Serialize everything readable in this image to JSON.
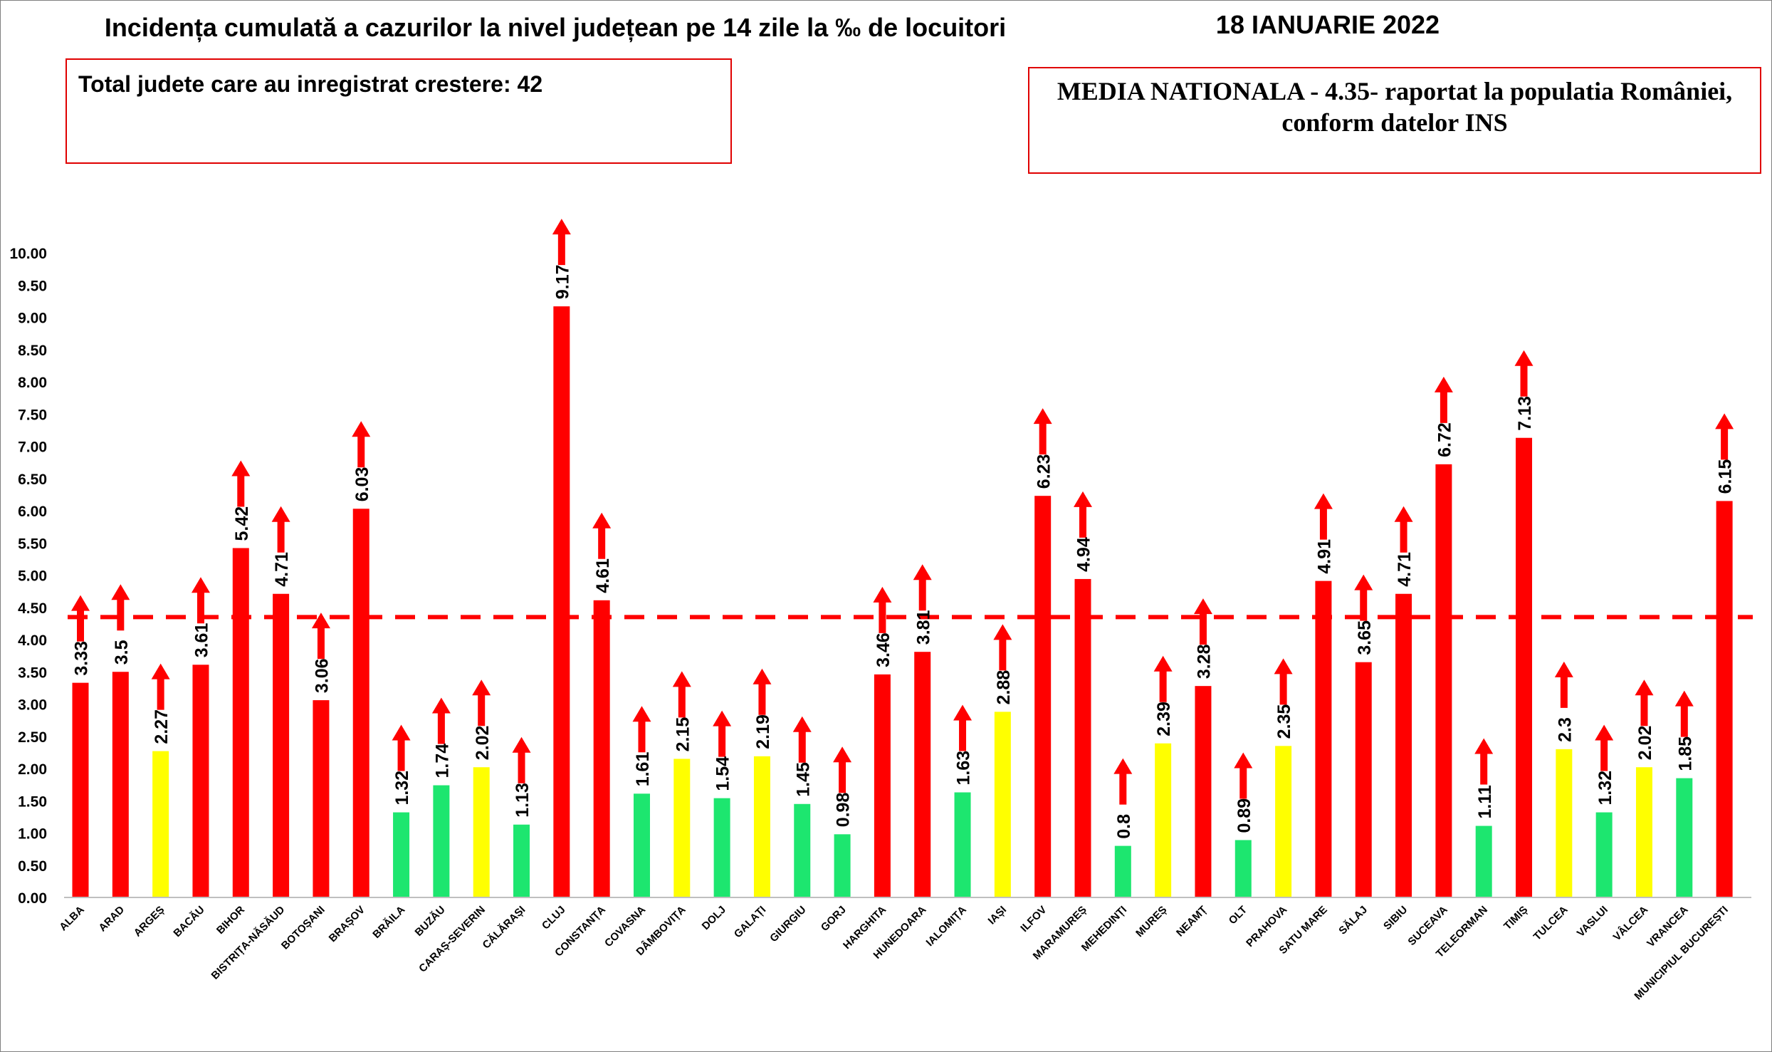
{
  "title": "Incidența cumulată a cazurilor la nivel județean pe 14 zile la ‰ de locuitori",
  "date": "18 IANUARIE 2022",
  "info_box": {
    "text": "Total judete care au inregistrat crestere: 42"
  },
  "media_box": {
    "line1": "MEDIA NATIONALA - 4.35-  raportat la populatia României,",
    "line2": "conform datelor INS"
  },
  "colors": {
    "red": "#ff0000",
    "yellow": "#ffff00",
    "green": "#1de66f",
    "arrow": "#ff0000",
    "average_line": "#ff0000"
  },
  "chart_data": {
    "type": "bar",
    "title": "Incidența cumulată a cazurilor la nivel județean pe 14 zile la ‰ de locuitori",
    "ylim": [
      0,
      10
    ],
    "ytick_step": 0.5,
    "grid": false,
    "reference_line": {
      "value": 4.35,
      "style": "dashed"
    },
    "increase_arrows": "all",
    "categories": [
      "ALBA",
      "ARAD",
      "ARGEȘ",
      "BACĂU",
      "BIHOR",
      "BISTRIȚA-NĂSĂUD",
      "BOTOȘANI",
      "BRAȘOV",
      "BRĂILA",
      "BUZĂU",
      "CARAȘ-SEVERIN",
      "CĂLĂRAȘI",
      "CLUJ",
      "CONSTANȚA",
      "COVASNA",
      "DÂMBOVIȚA",
      "DOLJ",
      "GALAȚI",
      "GIURGIU",
      "GORJ",
      "HARGHITA",
      "HUNEDOARA",
      "IALOMIȚA",
      "IAȘI",
      "ILFOV",
      "MARAMUREȘ",
      "MEHEDINȚI",
      "MUREȘ",
      "NEAMȚ",
      "OLT",
      "PRAHOVA",
      "SATU MARE",
      "SĂLAJ",
      "SIBIU",
      "SUCEAVA",
      "TELEORMAN",
      "TIMIȘ",
      "TULCEA",
      "VASLUI",
      "VÂLCEA",
      "VRANCEA",
      "MUNICIPIUL BUCUREȘTI"
    ],
    "values": [
      3.33,
      3.5,
      2.27,
      3.61,
      5.42,
      4.71,
      3.06,
      6.03,
      1.32,
      1.74,
      2.02,
      1.13,
      9.17,
      4.61,
      1.61,
      2.15,
      1.54,
      2.19,
      1.45,
      0.98,
      3.46,
      3.81,
      1.63,
      2.88,
      6.23,
      4.94,
      0.8,
      2.39,
      3.28,
      0.89,
      2.35,
      4.91,
      3.65,
      4.71,
      6.72,
      1.11,
      7.13,
      2.3,
      1.32,
      2.02,
      1.85,
      6.15
    ],
    "value_labels": [
      "3.33",
      "3.5",
      "2.27",
      "3.61",
      "5.42",
      "4.71",
      "3.06",
      "6.03",
      "1.32",
      "1.74",
      "2.02",
      "1.13",
      "9.17",
      "4.61",
      "1.61",
      "2.15",
      "1.54",
      "2.19",
      "1.45",
      "0.98",
      "3.46",
      "3.81",
      "1.63",
      "2.88",
      "6.23",
      "4.94",
      "0.8",
      "2.39",
      "3.28",
      "0.89",
      "2.35",
      "4.91",
      "3.65",
      "4.71",
      "6.72",
      "1.11",
      "7.13",
      "2.3",
      "1.32",
      "2.02",
      "1.85",
      "6.15"
    ],
    "bar_colors": [
      "red",
      "red",
      "yellow",
      "red",
      "red",
      "red",
      "red",
      "red",
      "green",
      "green",
      "yellow",
      "green",
      "red",
      "red",
      "green",
      "yellow",
      "green",
      "yellow",
      "green",
      "green",
      "red",
      "red",
      "green",
      "yellow",
      "red",
      "red",
      "green",
      "yellow",
      "red",
      "green",
      "yellow",
      "red",
      "red",
      "red",
      "red",
      "green",
      "red",
      "yellow",
      "green",
      "yellow",
      "green",
      "red"
    ]
  }
}
